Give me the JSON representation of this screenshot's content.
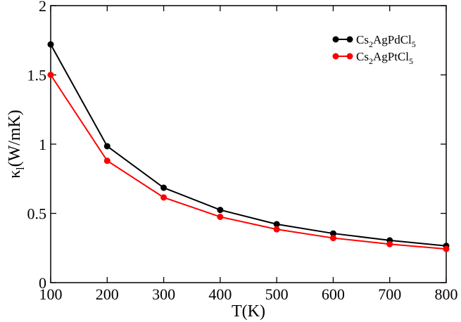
{
  "chart_data": {
    "type": "line",
    "title": "",
    "xlabel": "T(K)",
    "ylabel_main": "κ",
    "ylabel_sub": "l",
    "ylabel_rest": "(W/mK)",
    "xlim": [
      100,
      800
    ],
    "ylim": [
      0,
      2
    ],
    "xticks": [
      100,
      200,
      300,
      400,
      500,
      600,
      700,
      800
    ],
    "yticks": [
      0,
      0.5,
      1,
      1.5,
      2
    ],
    "ytick_labels": [
      "0",
      "0.5",
      "1",
      "1.5",
      "2"
    ],
    "grid": false,
    "legend_position": "top-right",
    "x": [
      100,
      200,
      300,
      400,
      500,
      600,
      700,
      800
    ],
    "series": [
      {
        "name": "Cs2AgPdCl5",
        "label_parts": [
          "Cs",
          "2",
          "AgPdCl",
          "5"
        ],
        "color": "#000000",
        "values": [
          1.72,
          0.985,
          0.685,
          0.525,
          0.422,
          0.355,
          0.305,
          0.265
        ]
      },
      {
        "name": "Cs2AgPtCl5",
        "label_parts": [
          "Cs",
          "2",
          "AgPtCl",
          "5"
        ],
        "color": "#ff0000",
        "values": [
          1.5,
          0.88,
          0.615,
          0.475,
          0.385,
          0.322,
          0.278,
          0.243
        ]
      }
    ]
  }
}
